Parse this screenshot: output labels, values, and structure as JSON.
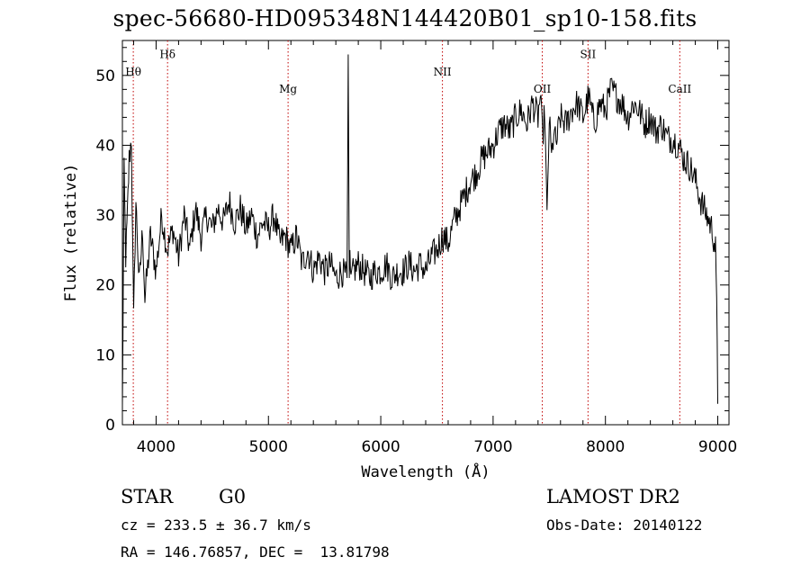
{
  "chart_data": {
    "type": "line",
    "title": "spec-56680-HD095348N144420B01_sp10-158.fits",
    "xlabel": "Wavelength (Å)",
    "ylabel": "Flux (relative)",
    "xlim": [
      3700,
      9100
    ],
    "ylim": [
      0,
      55
    ],
    "x_ticks": [
      4000,
      5000,
      6000,
      7000,
      8000,
      9000
    ],
    "y_ticks": [
      0,
      10,
      20,
      30,
      40,
      50
    ],
    "grid": false,
    "series": [
      {
        "x": [
          3700,
          3715,
          3730,
          3745,
          3760,
          3780,
          3800,
          3820,
          3850,
          3880,
          3900,
          3950,
          4000,
          4050,
          4100,
          4150,
          4200,
          4250,
          4300,
          4350,
          4400,
          4450,
          4500,
          4550,
          4600,
          4650,
          4700,
          4750,
          4800,
          4850,
          4900,
          4950,
          5000,
          5050,
          5100,
          5150,
          5200,
          5250,
          5300,
          5350,
          5400,
          5450,
          5500,
          5550,
          5600,
          5650,
          5700,
          5710,
          5720,
          5725,
          5730,
          5740,
          5760,
          5800,
          5850,
          5900,
          5950,
          6000,
          6050,
          6100,
          6150,
          6200,
          6250,
          6300,
          6350,
          6400,
          6450,
          6500,
          6550,
          6600,
          6650,
          6700,
          6750,
          6800,
          6850,
          6900,
          6950,
          7000,
          7050,
          7100,
          7150,
          7200,
          7250,
          7300,
          7350,
          7400,
          7420,
          7440,
          7460,
          7480,
          7500,
          7520,
          7540,
          7560,
          7600,
          7650,
          7700,
          7750,
          7800,
          7850,
          7900,
          7950,
          8000,
          8050,
          8100,
          8150,
          8200,
          8250,
          8300,
          8350,
          8400,
          8450,
          8500,
          8550,
          8600,
          8650,
          8700,
          8750,
          8800,
          8850,
          8900,
          8950,
          8980,
          8995,
          9000
        ],
        "y": [
          2,
          36,
          24,
          30,
          38,
          41,
          15,
          32,
          20,
          28,
          18,
          27,
          22,
          30,
          25,
          28,
          24,
          30,
          25,
          31,
          27,
          30,
          28,
          31,
          29,
          32,
          29,
          31,
          28,
          30,
          27,
          29,
          28,
          30,
          26,
          27,
          25,
          27,
          23,
          25,
          22,
          24,
          22,
          23,
          21,
          22,
          21,
          53,
          21,
          25,
          22,
          21,
          22,
          23,
          22,
          21,
          22,
          22,
          23,
          21,
          22,
          22,
          23,
          22,
          23,
          22,
          24,
          25,
          27,
          26,
          29,
          31,
          33,
          35,
          36,
          38,
          39,
          40,
          42,
          43,
          42,
          44,
          45,
          43,
          46,
          44,
          47,
          41,
          45,
          29,
          44,
          38,
          42,
          40,
          44,
          43,
          45,
          46,
          44,
          47,
          43,
          46,
          45,
          48,
          47,
          46,
          44,
          46,
          45,
          43,
          44,
          42,
          43,
          41,
          41,
          40,
          38,
          37,
          35,
          32,
          30,
          28,
          25,
          12,
          3
        ]
      }
    ],
    "annotations": [
      {
        "label": "Hθ",
        "x": 3797,
        "y": 50
      },
      {
        "label": "Hδ",
        "x": 4102,
        "y": 52.5
      },
      {
        "label": "Mg",
        "x": 5175,
        "y": 47.5
      },
      {
        "label": "NII",
        "x": 6549,
        "y": 50
      },
      {
        "label": "OII",
        "x": 7438,
        "y": 47.5
      },
      {
        "label": "SII",
        "x": 7845,
        "y": 52.5
      },
      {
        "label": "CaII",
        "x": 8662,
        "y": 47.5
      }
    ]
  },
  "info": {
    "object_class": "STAR",
    "subclass": "G0",
    "survey": "LAMOST DR2",
    "cz": "cz = 233.5 ± 36.7 km/s",
    "obs_date": "Obs-Date: 20140122",
    "coords": "RA = 146.76857, DEC =  13.81798"
  },
  "colors": {
    "line": "#000000",
    "marker_line": "#c00000",
    "axis": "#000000"
  }
}
